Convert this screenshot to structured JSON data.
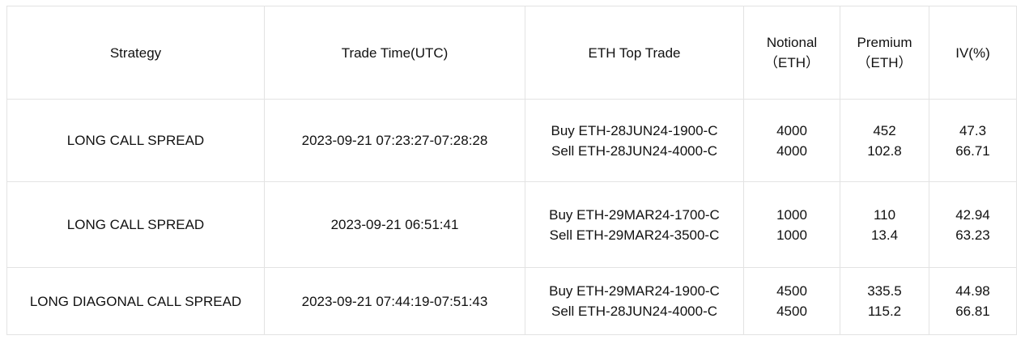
{
  "headers": [
    {
      "line1": "Strategy",
      "line2": ""
    },
    {
      "line1": "Trade Time(UTC)",
      "line2": ""
    },
    {
      "line1": "ETH Top Trade",
      "line2": ""
    },
    {
      "line1": "Notional",
      "line2": "（ETH）"
    },
    {
      "line1": "Premium",
      "line2": "（ETH）"
    },
    {
      "line1": "IV(%)",
      "line2": ""
    }
  ],
  "rows": [
    {
      "strategy": "LONG CALL SPREAD",
      "time": "2023-09-21 07:23:27-07:28:28",
      "trade": [
        "Buy ETH-28JUN24-1900-C",
        "Sell ETH-28JUN24-4000-C"
      ],
      "notional": [
        "4000",
        "4000"
      ],
      "premium": [
        "452",
        "102.8"
      ],
      "iv": [
        "47.3",
        "66.71"
      ]
    },
    {
      "strategy": "LONG CALL SPREAD",
      "time": "2023-09-21 06:51:41",
      "trade": [
        "Buy ETH-29MAR24-1700-C",
        "Sell ETH-29MAR24-3500-C"
      ],
      "notional": [
        "1000",
        "1000"
      ],
      "premium": [
        "110",
        "13.4"
      ],
      "iv": [
        "42.94",
        "63.23"
      ]
    },
    {
      "strategy": "LONG DIAGONAL CALL SPREAD",
      "time": "2023-09-21 07:44:19-07:51:43",
      "trade": [
        "Buy ETH-29MAR24-1900-C",
        "Sell ETH-28JUN24-4000-C"
      ],
      "notional": [
        "4500",
        "4500"
      ],
      "premium": [
        "335.5",
        "115.2"
      ],
      "iv": [
        "44.98",
        "66.81"
      ]
    }
  ]
}
